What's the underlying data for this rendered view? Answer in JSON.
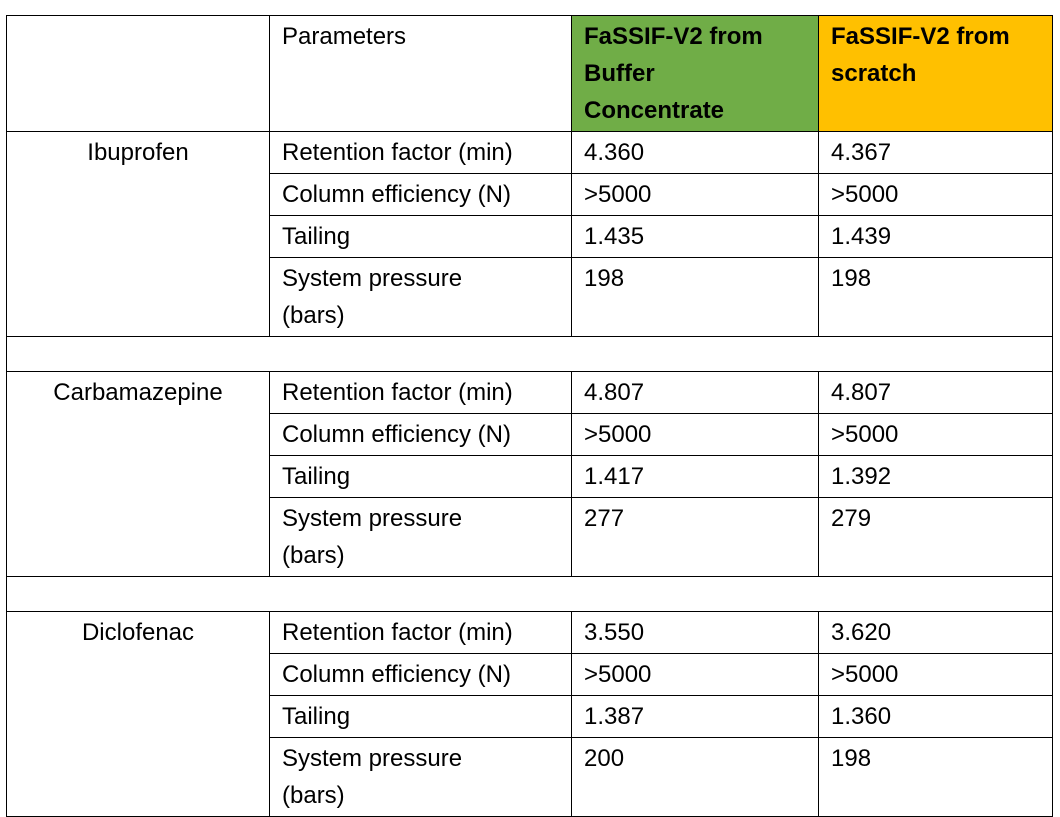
{
  "header": {
    "parameters": "Parameters",
    "col_buffer": [
      "FaSSIF-V2 from",
      "Buffer",
      "Concentrate"
    ],
    "col_scratch": [
      "FaSSIF-V2 from",
      "scratch"
    ]
  },
  "groups": [
    {
      "drug": "Ibuprofen",
      "rows": [
        {
          "param": "Retention factor (min)",
          "buffer": "4.360",
          "scratch": "4.367"
        },
        {
          "param": "Column efficiency (N)",
          "buffer": ">5000",
          "scratch": ">5000"
        },
        {
          "param": "Tailing",
          "buffer": "1.435",
          "scratch": "1.439"
        },
        {
          "param": [
            "System pressure",
            "(bars)"
          ],
          "buffer": "198",
          "scratch": "198"
        }
      ]
    },
    {
      "drug": "Carbamazepine",
      "rows": [
        {
          "param": "Retention factor (min)",
          "buffer": "4.807",
          "scratch": "4.807"
        },
        {
          "param": "Column efficiency (N)",
          "buffer": ">5000",
          "scratch": ">5000"
        },
        {
          "param": "Tailing",
          "buffer": "1.417",
          "scratch": "1.392"
        },
        {
          "param": [
            "System pressure",
            "(bars)"
          ],
          "buffer": "277",
          "scratch": "279"
        }
      ]
    },
    {
      "drug": "Diclofenac",
      "rows": [
        {
          "param": "Retention factor (min)",
          "buffer": "3.550",
          "scratch": "3.620"
        },
        {
          "param": "Column efficiency (N)",
          "buffer": ">5000",
          "scratch": ">5000"
        },
        {
          "param": "Tailing",
          "buffer": "1.387",
          "scratch": "1.360"
        },
        {
          "param": [
            "System pressure",
            "(bars)"
          ],
          "buffer": "200",
          "scratch": "198"
        }
      ]
    }
  ],
  "colors": {
    "buffer_header": "#70ad47",
    "scratch_header": "#ffc000"
  }
}
